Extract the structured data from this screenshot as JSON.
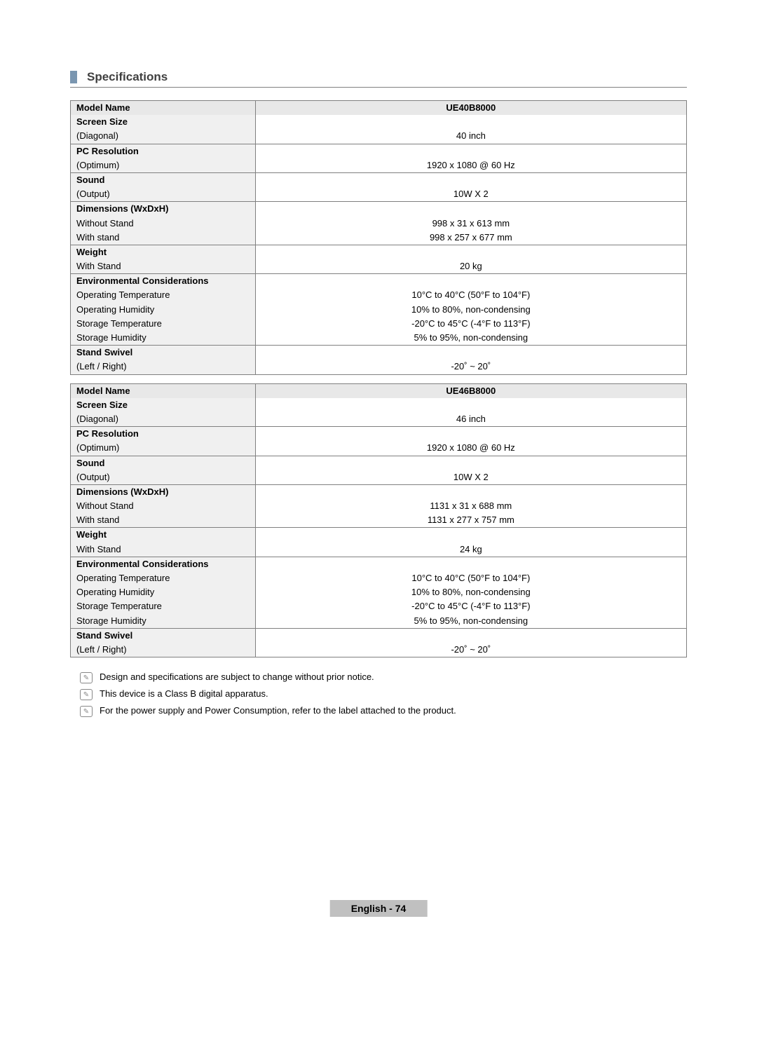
{
  "section_title": "Specifications",
  "tables": [
    {
      "model_label": "Model Name",
      "model_value": "UE40B8000",
      "rows": [
        {
          "cat": "Screen Size",
          "sub": "(Diagonal)",
          "val": "40 inch"
        },
        {
          "cat": "PC Resolution",
          "sub": "(Optimum)",
          "val": "1920 x 1080 @ 60 Hz"
        },
        {
          "cat": "Sound",
          "sub": "(Output)",
          "val": "10W X 2"
        },
        {
          "cat": "Dimensions (WxDxH)",
          "subs": [
            "Without Stand",
            "With stand"
          ],
          "vals": [
            "998 x 31 x 613 mm",
            "998 x 257 x 677 mm"
          ]
        },
        {
          "cat": "Weight",
          "sub": "With Stand",
          "val": "20 kg"
        },
        {
          "cat": "Environmental Considerations",
          "subs": [
            "Operating Temperature",
            "Operating Humidity",
            "Storage Temperature",
            "Storage Humidity"
          ],
          "vals": [
            "10°C to 40°C (50°F to 104°F)",
            "10% to 80%, non-condensing",
            "-20°C to 45°C (-4°F to 113°F)",
            "5% to 95%, non-condensing"
          ]
        },
        {
          "cat": "Stand Swivel",
          "sub": "(Left / Right)",
          "val": "-20˚ ~ 20˚"
        }
      ]
    },
    {
      "model_label": "Model Name",
      "model_value": "UE46B8000",
      "rows": [
        {
          "cat": "Screen Size",
          "sub": "(Diagonal)",
          "val": "46 inch"
        },
        {
          "cat": "PC Resolution",
          "sub": "(Optimum)",
          "val": "1920 x 1080 @ 60 Hz"
        },
        {
          "cat": "Sound",
          "sub": "(Output)",
          "val": "10W X 2"
        },
        {
          "cat": "Dimensions (WxDxH)",
          "subs": [
            "Without Stand",
            "With stand"
          ],
          "vals": [
            "1131 x 31 x 688 mm",
            "1131 x 277 x 757 mm"
          ]
        },
        {
          "cat": "Weight",
          "sub": "With Stand",
          "val": "24 kg"
        },
        {
          "cat": "Environmental Considerations",
          "subs": [
            "Operating Temperature",
            "Operating Humidity",
            "Storage Temperature",
            "Storage Humidity"
          ],
          "vals": [
            "10°C to 40°C (50°F to 104°F)",
            "10% to 80%, non-condensing",
            "-20°C to 45°C (-4°F to 113°F)",
            "5% to 95%, non-condensing"
          ]
        },
        {
          "cat": "Stand Swivel",
          "sub": "(Left / Right)",
          "val": "-20˚ ~ 20˚"
        }
      ]
    }
  ],
  "notes": [
    "Design and specifications are subject to change without prior notice.",
    "This device is a Class B digital apparatus.",
    "For the power supply and Power Consumption, refer to the label attached to the product."
  ],
  "footer": {
    "label": "English - ",
    "page": "74"
  },
  "colors": {
    "header_bg": "#e8e8e8",
    "label_bg": "#f0f0f0",
    "border": "#808080",
    "footer_bg": "#c0c0c0",
    "marker": "#7a96b0"
  }
}
